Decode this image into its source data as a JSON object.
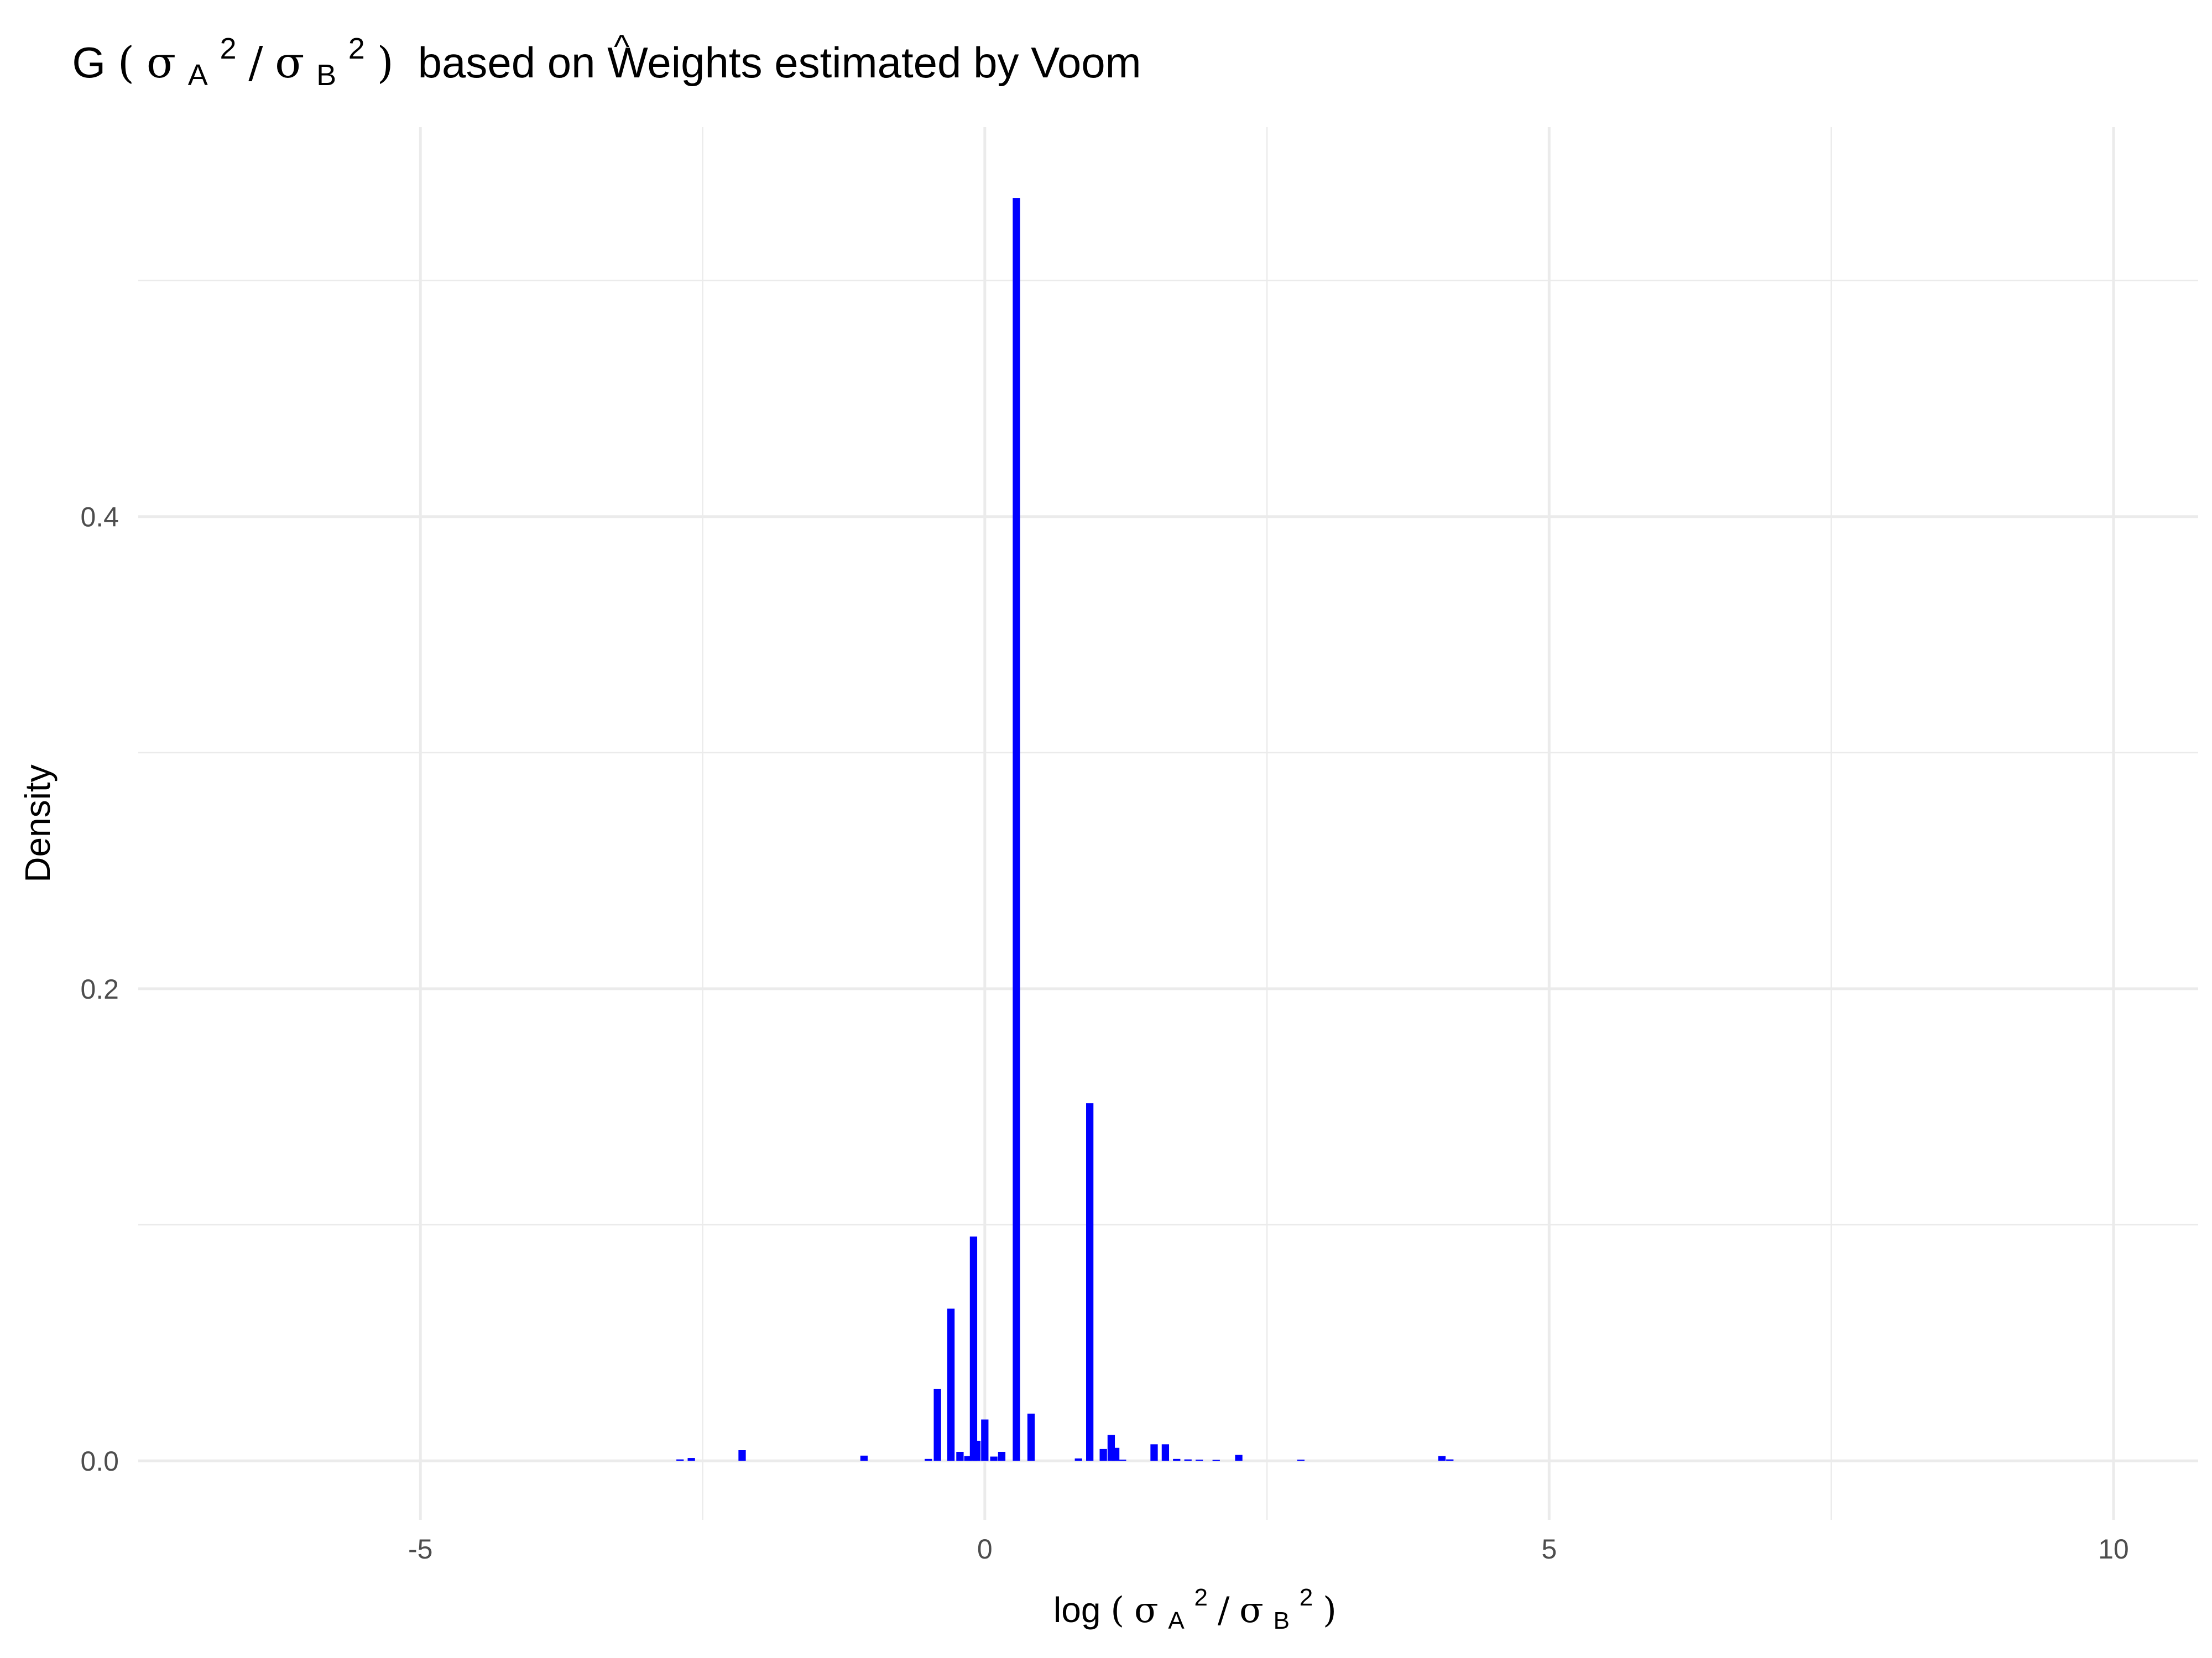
{
  "chart_data": {
    "type": "bar",
    "title": {
      "hat": "^",
      "G": "G",
      "lparen": "(",
      "sigma1": "σ",
      "sub1": "A",
      "sup1": "2",
      "slash": "/",
      "sigma2": "σ",
      "sub2": "B",
      "sup2": "2",
      "rparen": ")",
      "suffix": "based on Weights estimated by Voom"
    },
    "xlabel": {
      "prefix": "log",
      "lparen": "(",
      "sigma1": "σ",
      "sub1": "A",
      "sup1": "2",
      "slash": "/",
      "sigma2": "σ",
      "sub2": "B",
      "sup2": "2",
      "rparen": ")"
    },
    "ylabel": "Density",
    "xlim": [
      -7.5,
      10.75
    ],
    "ylim": [
      -0.025,
      0.565
    ],
    "x_ticks": [
      {
        "value": -5,
        "label": "-5"
      },
      {
        "value": 0,
        "label": "0"
      },
      {
        "value": 5,
        "label": "5"
      },
      {
        "value": 10,
        "label": "10"
      }
    ],
    "y_ticks": [
      {
        "value": 0.0,
        "label": "0.0"
      },
      {
        "value": 0.2,
        "label": "0.2"
      },
      {
        "value": 0.4,
        "label": "0.4"
      }
    ],
    "x_minor": [
      -2.5,
      2.5,
      7.5
    ],
    "y_minor": [
      0.1,
      0.3,
      0.5
    ],
    "grid": true,
    "bar_color": "#0000ff",
    "bar_width": 0.065,
    "series": [
      {
        "x": [
          -2.7,
          -2.6,
          -2.15,
          -1.07,
          -0.5,
          -0.42,
          -0.3,
          -0.22,
          -0.15,
          -0.1,
          -0.07,
          0.0,
          0.08,
          0.15,
          0.28,
          0.41,
          0.83,
          0.93,
          1.05,
          1.12,
          1.16,
          1.22,
          1.5,
          1.6,
          1.7,
          1.8,
          1.9,
          2.05,
          2.25,
          2.8,
          4.05,
          4.12
        ],
        "values": [
          0.0006,
          0.0012,
          0.0045,
          0.0022,
          0.0008,
          0.0305,
          0.0645,
          0.0038,
          0.002,
          0.095,
          0.0085,
          0.0175,
          0.0018,
          0.0038,
          0.535,
          0.02,
          0.001,
          0.1515,
          0.005,
          0.011,
          0.0055,
          0.0005,
          0.007,
          0.007,
          0.0008,
          0.0006,
          0.0005,
          0.0004,
          0.0025,
          0.0005,
          0.002,
          0.0006
        ]
      }
    ]
  }
}
